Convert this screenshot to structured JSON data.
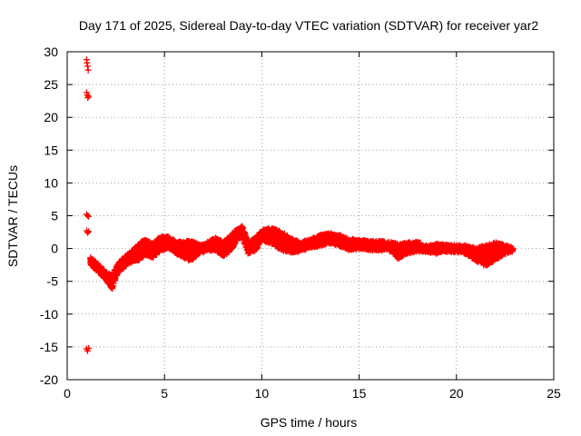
{
  "chart_data": {
    "type": "scatter",
    "title": "Day 171 of 2025, Sidereal Day-to-day VTEC variation (SDTVAR) for receiver yar2",
    "xlabel": "GPS time / hours",
    "ylabel": "SDTVAR / TECUs",
    "xlim": [
      0,
      25
    ],
    "ylim": [
      -20,
      30
    ],
    "x_ticks": [
      0,
      5,
      10,
      15,
      20,
      25
    ],
    "x_tick_labels": [
      "0",
      "5",
      "10",
      "15",
      "20",
      "25"
    ],
    "y_ticks": [
      -20,
      -15,
      -10,
      -5,
      0,
      5,
      10,
      15,
      20,
      25,
      30
    ],
    "y_tick_labels": [
      "-20",
      "-15",
      "-10",
      "-5",
      "0",
      "5",
      "10",
      "15",
      "20",
      "25",
      "30"
    ],
    "grid": true,
    "marker": "+",
    "series": [
      {
        "name": "SDTVAR",
        "color": "#ff0000",
        "outliers": [
          {
            "x": 1.0,
            "y": 28.8
          },
          {
            "x": 1.02,
            "y": 28.3
          },
          {
            "x": 1.05,
            "y": 27.8
          },
          {
            "x": 1.08,
            "y": 27.2
          },
          {
            "x": 1.0,
            "y": 23.8
          },
          {
            "x": 1.03,
            "y": 23.4
          },
          {
            "x": 1.06,
            "y": 23.0
          },
          {
            "x": 1.1,
            "y": 23.2
          },
          {
            "x": 1.0,
            "y": 5.2
          },
          {
            "x": 1.05,
            "y": 5.0
          },
          {
            "x": 1.1,
            "y": 4.9
          },
          {
            "x": 1.0,
            "y": 2.7
          },
          {
            "x": 1.05,
            "y": 2.4
          },
          {
            "x": 1.1,
            "y": 2.6
          },
          {
            "x": 1.0,
            "y": -15.3
          },
          {
            "x": 1.05,
            "y": -15.6
          },
          {
            "x": 1.1,
            "y": -15.2
          }
        ],
        "trace_upper": [
          [
            1.2,
            -1.5
          ],
          [
            1.6,
            -2.6
          ],
          [
            2.0,
            -3.8
          ],
          [
            2.3,
            -4.3
          ],
          [
            2.6,
            -2.6
          ],
          [
            3.0,
            -1.2
          ],
          [
            3.4,
            -0.4
          ],
          [
            3.7,
            0.6
          ],
          [
            4.0,
            1.1
          ],
          [
            4.4,
            0.6
          ],
          [
            4.8,
            1.6
          ],
          [
            5.2,
            1.6
          ],
          [
            5.6,
            0.8
          ],
          [
            6.0,
            0.9
          ],
          [
            6.4,
            0.9
          ],
          [
            6.8,
            0.4
          ],
          [
            7.2,
            0.7
          ],
          [
            7.6,
            1.4
          ],
          [
            8.0,
            0.8
          ],
          [
            8.4,
            1.8
          ],
          [
            8.8,
            3.0
          ],
          [
            9.0,
            3.2
          ],
          [
            9.3,
            0.7
          ],
          [
            9.7,
            1.5
          ],
          [
            10.0,
            2.6
          ],
          [
            10.5,
            2.9
          ],
          [
            11.0,
            2.4
          ],
          [
            11.5,
            1.3
          ],
          [
            12.0,
            0.8
          ],
          [
            12.5,
            1.2
          ],
          [
            13.0,
            1.8
          ],
          [
            13.5,
            2.1
          ],
          [
            14.0,
            1.8
          ],
          [
            14.5,
            1.2
          ],
          [
            15.0,
            1.2
          ],
          [
            15.5,
            0.9
          ],
          [
            16.0,
            0.9
          ],
          [
            16.5,
            0.8
          ],
          [
            17.0,
            0.5
          ],
          [
            17.5,
            0.7
          ],
          [
            18.0,
            0.8
          ],
          [
            18.5,
            0.2
          ],
          [
            19.0,
            0.5
          ],
          [
            19.5,
            0.3
          ],
          [
            20.0,
            0.3
          ],
          [
            20.5,
            0.2
          ],
          [
            21.0,
            -0.2
          ],
          [
            21.5,
            0.3
          ],
          [
            22.0,
            0.7
          ],
          [
            22.5,
            0.3
          ],
          [
            22.9,
            0.0
          ]
        ],
        "trace_lower": [
          [
            1.2,
            -2.3
          ],
          [
            1.6,
            -3.4
          ],
          [
            2.0,
            -4.6
          ],
          [
            2.3,
            -6.0
          ],
          [
            2.6,
            -3.5
          ],
          [
            3.0,
            -2.5
          ],
          [
            3.4,
            -1.7
          ],
          [
            3.7,
            -1.5
          ],
          [
            4.0,
            -0.8
          ],
          [
            4.4,
            -1.2
          ],
          [
            4.8,
            -0.2
          ],
          [
            5.2,
            0.2
          ],
          [
            5.6,
            -0.6
          ],
          [
            6.0,
            -1.2
          ],
          [
            6.4,
            -1.7
          ],
          [
            6.8,
            -0.5
          ],
          [
            7.2,
            -0.2
          ],
          [
            7.6,
            0.0
          ],
          [
            8.0,
            -1.0
          ],
          [
            8.4,
            -0.2
          ],
          [
            8.8,
            1.8
          ],
          [
            9.0,
            2.0
          ],
          [
            9.3,
            -0.6
          ],
          [
            9.7,
            0.0
          ],
          [
            10.0,
            1.4
          ],
          [
            10.5,
            1.0
          ],
          [
            11.0,
            0.0
          ],
          [
            11.5,
            -0.4
          ],
          [
            12.0,
            -0.2
          ],
          [
            12.5,
            0.3
          ],
          [
            13.0,
            0.6
          ],
          [
            13.5,
            1.0
          ],
          [
            14.0,
            0.6
          ],
          [
            14.5,
            0.0
          ],
          [
            15.0,
            0.2
          ],
          [
            15.5,
            0.0
          ],
          [
            16.0,
            -0.1
          ],
          [
            16.5,
            0.0
          ],
          [
            17.0,
            -1.3
          ],
          [
            17.5,
            -0.5
          ],
          [
            18.0,
            -0.2
          ],
          [
            18.5,
            -0.4
          ],
          [
            19.0,
            -0.6
          ],
          [
            19.5,
            -0.3
          ],
          [
            20.0,
            -0.3
          ],
          [
            20.5,
            -0.7
          ],
          [
            21.0,
            -1.6
          ],
          [
            21.5,
            -2.5
          ],
          [
            22.0,
            -1.5
          ],
          [
            22.5,
            -0.6
          ],
          [
            22.9,
            -0.3
          ]
        ]
      }
    ]
  }
}
